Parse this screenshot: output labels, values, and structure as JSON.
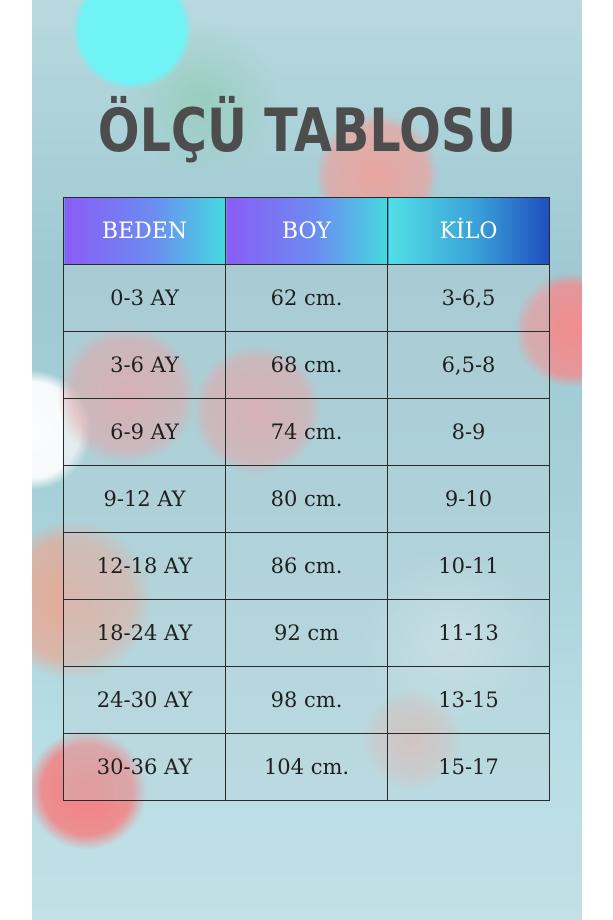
{
  "title": "ÖLÇÜ TABLOSU",
  "table": {
    "headers": [
      "BEDEN",
      "BOY",
      "KİLO"
    ],
    "rows": [
      [
        "0-3 AY",
        "62 cm.",
        "3-6,5"
      ],
      [
        "3-6 AY",
        "68 cm.",
        "6,5-8"
      ],
      [
        "6-9 AY",
        "74 cm.",
        "8-9"
      ],
      [
        "9-12 AY",
        "80 cm.",
        "9-10"
      ],
      [
        "12-18 AY",
        "86 cm.",
        "10-11"
      ],
      [
        "18-24 AY",
        "92 cm",
        "11-13"
      ],
      [
        "24-30 AY",
        "98 cm.",
        "13-15"
      ],
      [
        "30-36 AY",
        "104 cm.",
        "15-17"
      ]
    ]
  },
  "colors": {
    "title": "#4d4d4d",
    "header_gradient_start": "#8a5cf6",
    "header_gradient_end": "#45d9e0",
    "border": "#2a2a2a"
  }
}
